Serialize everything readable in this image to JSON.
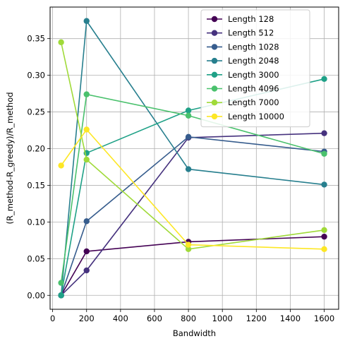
{
  "chart_data": {
    "type": "line",
    "xlabel": "Bandwidth",
    "ylabel": "(R_method-R_greedy)/R_method",
    "xlim": [
      -15,
      1685
    ],
    "ylim": [
      -0.019,
      0.393
    ],
    "xticks": [
      0,
      200,
      400,
      600,
      800,
      1000,
      1200,
      1400,
      1600
    ],
    "yticks": [
      0.0,
      0.05,
      0.1,
      0.15,
      0.2,
      0.25,
      0.3,
      0.35
    ],
    "ytick_labels": [
      "0.00",
      "0.05",
      "0.10",
      "0.15",
      "0.20",
      "0.25",
      "0.30",
      "0.35"
    ],
    "grid": true,
    "legend": "top-right",
    "x": [
      50,
      200,
      800,
      1600
    ],
    "series": [
      {
        "name": "Length 128",
        "color": "#440154",
        "values": [
          0.0,
          0.06,
          0.073,
          0.08
        ]
      },
      {
        "name": "Length 512",
        "color": "#46327e",
        "values": [
          0.0,
          0.034,
          0.215,
          0.221
        ]
      },
      {
        "name": "Length 1028",
        "color": "#365c8d",
        "values": [
          0.0,
          0.101,
          0.216,
          0.196
        ]
      },
      {
        "name": "Length 2048",
        "color": "#277f8e",
        "values": [
          0.0,
          0.374,
          0.172,
          0.151
        ]
      },
      {
        "name": "Length 3000",
        "color": "#1fa187",
        "values": [
          0.0,
          0.194,
          0.252,
          0.295
        ]
      },
      {
        "name": "Length 4096",
        "color": "#4ac16d",
        "values": [
          0.017,
          0.274,
          0.245,
          0.193
        ]
      },
      {
        "name": "Length 7000",
        "color": "#a0da39",
        "values": [
          0.345,
          0.185,
          0.063,
          0.089
        ]
      },
      {
        "name": "Length 10000",
        "color": "#fde725",
        "values": [
          0.177,
          0.226,
          0.069,
          0.063
        ]
      }
    ]
  }
}
